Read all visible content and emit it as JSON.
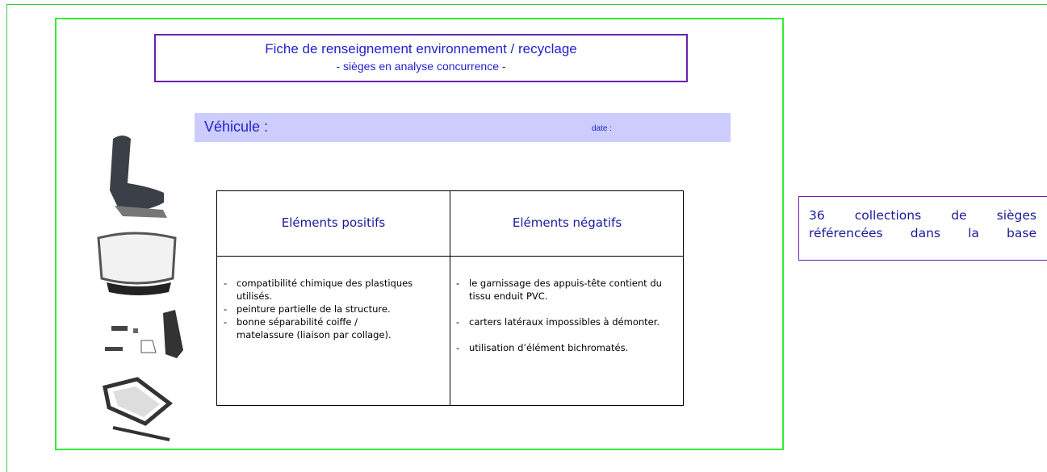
{
  "title": {
    "line1": "Fiche de renseignement environnement / recyclage",
    "line2": "- sièges en analyse concurrence -"
  },
  "vehicle": {
    "label": "Véhicule :",
    "date": "date :"
  },
  "table": {
    "headers": [
      "Eléments positifs",
      "Eléments négatifs"
    ],
    "positives": [
      "compatibilité chimique des plastiques utilisés.",
      "peinture partielle de la structure.",
      "bonne séparabilité coiffe / matelassure (liaison par collage)."
    ],
    "negatives": [
      "le garnissage des appuis-tête contient du tissu enduit PVC.",
      "carters latéraux impossibles à démonter.",
      "utilisation d’élément bichromatés."
    ]
  },
  "note": "36 collections de sièges référencées dans la base"
}
